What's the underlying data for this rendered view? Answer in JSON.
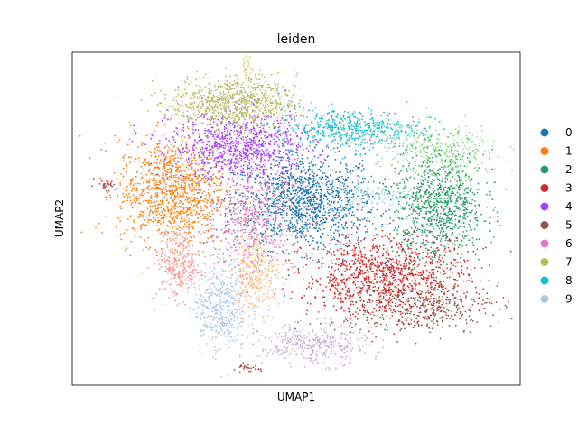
{
  "chart_data": {
    "type": "scatter",
    "title": "leiden",
    "xlabel": "UMAP1",
    "ylabel": "UMAP2",
    "x_ticks": [],
    "y_ticks": [],
    "grid": false,
    "legend_position": "right",
    "legend": [
      {
        "name": "0",
        "color": "#1f77b4"
      },
      {
        "name": "1",
        "color": "#ff7f0e"
      },
      {
        "name": "2",
        "color": "#279e68"
      },
      {
        "name": "3",
        "color": "#d62728"
      },
      {
        "name": "4",
        "color": "#aa40fc"
      },
      {
        "name": "5",
        "color": "#8c564b"
      },
      {
        "name": "6",
        "color": "#e377c2"
      },
      {
        "name": "7",
        "color": "#b5bd61"
      },
      {
        "name": "8",
        "color": "#17becf"
      },
      {
        "name": "9",
        "color": "#aec7e8"
      }
    ],
    "extra_colors": {
      "light_green": "#98df8a",
      "light_red": "#ff9896",
      "light_purple": "#c5b0d5",
      "peach": "#ffbb78",
      "cyan_light": "#9edae5",
      "olive_light": "#dbdb8d"
    },
    "xlim": [
      0,
      100
    ],
    "ylim": [
      0,
      100
    ],
    "clusters": [
      {
        "label": "0",
        "color": "#1f77b4",
        "cx": 52,
        "cy": 55,
        "sx": 8,
        "sy": 7,
        "n": 1300
      },
      {
        "label": "1",
        "color": "#ff7f0e",
        "cx": 22,
        "cy": 58,
        "sx": 6,
        "sy": 8,
        "n": 1100
      },
      {
        "label": "2",
        "color": "#279e68",
        "cx": 82,
        "cy": 54,
        "sx": 5,
        "sy": 8,
        "n": 900
      },
      {
        "label": "3",
        "color": "#d62728",
        "cx": 70,
        "cy": 33,
        "sx": 9,
        "sy": 6,
        "n": 1000
      },
      {
        "label": "4",
        "color": "#aa40fc",
        "cx": 38,
        "cy": 72,
        "sx": 8,
        "sy": 5,
        "n": 900
      },
      {
        "label": "5",
        "color": "#8c564b",
        "cx": 76,
        "cy": 24,
        "sx": 10,
        "sy": 4,
        "n": 450
      },
      {
        "label": "6",
        "color": "#e377c2",
        "cx": 40,
        "cy": 50,
        "sx": 5,
        "sy": 8,
        "n": 500
      },
      {
        "label": "7",
        "color": "#b5bd61",
        "cx": 36,
        "cy": 85,
        "sx": 7,
        "sy": 4,
        "n": 800
      },
      {
        "label": "8",
        "color": "#17becf",
        "cx": 62,
        "cy": 77,
        "sx": 8,
        "sy": 3,
        "n": 500
      },
      {
        "label": "9",
        "color": "#aec7e8",
        "cx": 33,
        "cy": 24,
        "sx": 3,
        "sy": 7,
        "n": 450
      },
      {
        "label": "",
        "color": "#98df8a",
        "cx": 82,
        "cy": 70,
        "sx": 7,
        "sy": 4,
        "n": 350
      },
      {
        "label": "",
        "color": "#ff9896",
        "cx": 24,
        "cy": 36,
        "sx": 2.5,
        "sy": 5,
        "n": 300
      },
      {
        "label": "",
        "color": "#c5b0d5",
        "cx": 54,
        "cy": 12,
        "sx": 6,
        "sy": 3,
        "n": 350
      },
      {
        "label": "",
        "color": "#ffbb78",
        "cx": 41,
        "cy": 34,
        "sx": 2.5,
        "sy": 6,
        "n": 300
      },
      {
        "label": "",
        "color": "#9edae5",
        "cx": 67,
        "cy": 57,
        "sx": 4,
        "sy": 1.5,
        "n": 90
      },
      {
        "label": "",
        "color": "#dbdb8d",
        "cx": 39,
        "cy": 97,
        "sx": 0.6,
        "sy": 2,
        "n": 40
      },
      {
        "label": "",
        "color": "#ad494a",
        "cx": 7,
        "cy": 60,
        "sx": 1.5,
        "sy": 0.7,
        "n": 30
      },
      {
        "label": "",
        "color": "#ad494a",
        "cx": 39,
        "cy": 5,
        "sx": 1.5,
        "sy": 0.6,
        "n": 30
      }
    ]
  }
}
